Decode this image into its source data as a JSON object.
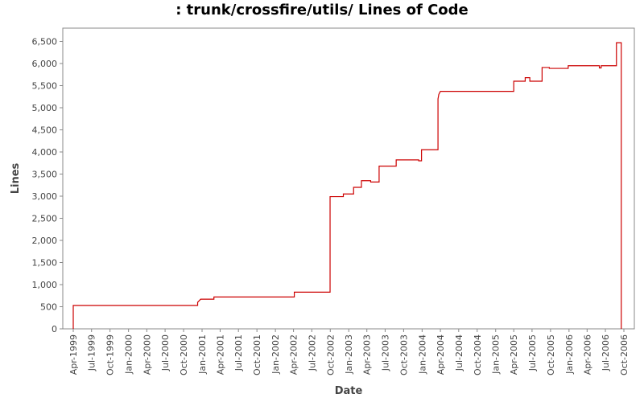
{
  "chart_data": {
    "type": "line",
    "title": ": trunk/crossfire/utils/ Lines of Code",
    "xlabel": "Date",
    "ylabel": "Lines",
    "x_ticks": [
      "Apr-1999",
      "Jul-1999",
      "Oct-1999",
      "Jan-2000",
      "Apr-2000",
      "Jul-2000",
      "Oct-2000",
      "Jan-2001",
      "Apr-2001",
      "Jul-2001",
      "Oct-2001",
      "Jan-2002",
      "Apr-2002",
      "Jul-2002",
      "Oct-2002",
      "Jan-2003",
      "Apr-2003",
      "Jul-2003",
      "Oct-2003",
      "Jan-2004",
      "Apr-2004",
      "Jul-2004",
      "Oct-2004",
      "Jan-2005",
      "Apr-2005",
      "Jul-2005",
      "Oct-2005",
      "Jan-2006",
      "Apr-2006",
      "Jul-2006",
      "Oct-2006"
    ],
    "y_ticks": [
      "0",
      "500",
      "1,000",
      "1,500",
      "2,000",
      "2,500",
      "3,000",
      "3,500",
      "4,000",
      "4,500",
      "5,000",
      "5,500",
      "6,000",
      "6,500"
    ],
    "ylim": [
      0,
      6800
    ],
    "series": [
      {
        "color": "#cc0000",
        "step": true,
        "points": [
          [
            "1999-04-01",
            0
          ],
          [
            "1999-04-01",
            530
          ],
          [
            "2000-12-10",
            530
          ],
          [
            "2000-12-10",
            600
          ],
          [
            "2000-12-25",
            670
          ],
          [
            "2001-03-01",
            670
          ],
          [
            "2001-03-01",
            720
          ],
          [
            "2002-04-05",
            720
          ],
          [
            "2002-04-05",
            830
          ],
          [
            "2002-09-30",
            830
          ],
          [
            "2002-09-30",
            2990
          ],
          [
            "2002-12-05",
            2990
          ],
          [
            "2002-12-05",
            3050
          ],
          [
            "2003-01-25",
            3050
          ],
          [
            "2003-01-25",
            3200
          ],
          [
            "2003-03-05",
            3200
          ],
          [
            "2003-03-05",
            3350
          ],
          [
            "2003-04-20",
            3350
          ],
          [
            "2003-04-20",
            3320
          ],
          [
            "2003-06-01",
            3320
          ],
          [
            "2003-06-01",
            3680
          ],
          [
            "2003-08-25",
            3680
          ],
          [
            "2003-08-25",
            3820
          ],
          [
            "2003-12-15",
            3820
          ],
          [
            "2003-12-15",
            3800
          ],
          [
            "2003-12-29",
            3800
          ],
          [
            "2003-12-29",
            4050
          ],
          [
            "2004-03-20",
            4050
          ],
          [
            "2004-03-20",
            5200
          ],
          [
            "2004-03-24",
            5300
          ],
          [
            "2004-04-01",
            5370
          ],
          [
            "2005-04-01",
            5370
          ],
          [
            "2005-04-01",
            5600
          ],
          [
            "2005-05-28",
            5600
          ],
          [
            "2005-05-28",
            5680
          ],
          [
            "2005-06-20",
            5680
          ],
          [
            "2005-06-20",
            5600
          ],
          [
            "2005-08-20",
            5600
          ],
          [
            "2005-08-20",
            5910
          ],
          [
            "2005-09-25",
            5910
          ],
          [
            "2005-09-25",
            5890
          ],
          [
            "2005-12-28",
            5890
          ],
          [
            "2005-12-28",
            5950
          ],
          [
            "2006-06-01",
            5950
          ],
          [
            "2006-06-01",
            5900
          ],
          [
            "2006-06-10",
            5900
          ],
          [
            "2006-06-10",
            5950
          ],
          [
            "2006-08-25",
            5950
          ],
          [
            "2006-08-25",
            6470
          ],
          [
            "2006-09-18",
            6470
          ],
          [
            "2006-09-18",
            0
          ]
        ]
      }
    ],
    "grid": false,
    "legend": false
  }
}
